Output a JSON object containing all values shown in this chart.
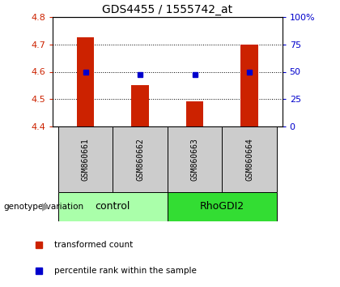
{
  "title": "GDS4455 / 1555742_at",
  "samples": [
    "GSM860661",
    "GSM860662",
    "GSM860663",
    "GSM860664"
  ],
  "red_values": [
    4.725,
    4.55,
    4.49,
    4.7
  ],
  "blue_values": [
    4.6,
    4.59,
    4.59,
    4.6
  ],
  "ylim_left": [
    4.4,
    4.8
  ],
  "ylim_right": [
    0,
    100
  ],
  "yticks_left": [
    4.4,
    4.5,
    4.6,
    4.7,
    4.8
  ],
  "yticks_right": [
    0,
    25,
    50,
    75,
    100
  ],
  "ytick_labels_right": [
    "0",
    "25",
    "50",
    "75",
    "100%"
  ],
  "groups": [
    {
      "label": "control",
      "samples": [
        0,
        1
      ],
      "color": "#aaffaa"
    },
    {
      "label": "RhoGDI2",
      "samples": [
        2,
        3
      ],
      "color": "#33dd33"
    }
  ],
  "bar_color": "#cc2200",
  "point_color": "#0000cc",
  "sample_box_color": "#cccccc",
  "legend_red_label": "transformed count",
  "legend_blue_label": "percentile rank within the sample",
  "genotype_label": "genotype/variation"
}
